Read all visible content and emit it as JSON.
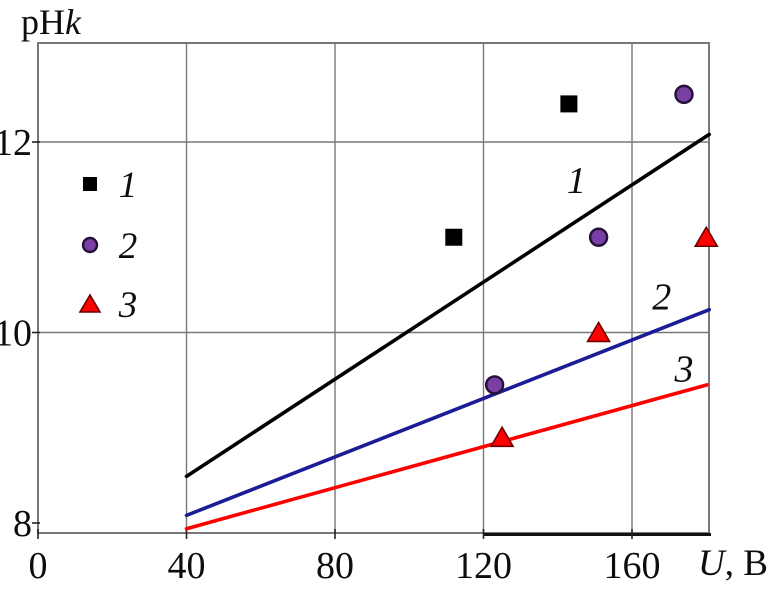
{
  "chart_data": {
    "type": "scatter",
    "title": "",
    "ylabel": {
      "normal": "pH",
      "italic": "k"
    },
    "xlabel": {
      "italic": "U",
      "normal": ", В"
    },
    "x_ticks": [
      0,
      40,
      80,
      120,
      160
    ],
    "x_grid": [
      40,
      80,
      120,
      160
    ],
    "y_ticks": [
      8,
      10,
      12
    ],
    "y_grid": [
      10,
      12
    ],
    "xlim": [
      0,
      180.8
    ],
    "ylim": [
      7.9,
      13.05
    ],
    "grid": true,
    "legend_position": "inside-top-left",
    "colors": {
      "grid": "#787878",
      "frame": "#787878",
      "tick": "#222222",
      "axis_thick_segment": "#111111",
      "series1": "#000000",
      "series2_line": "#1c1c96",
      "series2_fill": "#7a3fa5",
      "series2_outline": "#241038",
      "series3_fill": "#fe0000",
      "series3_outline": "#6b0000"
    },
    "series": [
      {
        "name": "1",
        "marker": "square",
        "marker_color": "#000000",
        "line_color": "#000000",
        "points": [
          [
            112,
            11.0
          ],
          [
            143,
            12.4
          ]
        ],
        "trend": [
          [
            40,
            8.49
          ],
          [
            180.8,
            12.08
          ]
        ],
        "label_at": [
          145,
          11.6
        ]
      },
      {
        "name": "2",
        "marker": "circle",
        "marker_color": "#7a3fa5",
        "marker_outline": "#241038",
        "line_color": "#1c1c96",
        "points": [
          [
            123,
            9.45
          ],
          [
            151,
            11.0
          ],
          [
            174,
            12.5
          ]
        ],
        "trend": [
          [
            40,
            8.08
          ],
          [
            180.8,
            10.24
          ]
        ],
        "label_at": [
          168,
          10.38
        ]
      },
      {
        "name": "3",
        "marker": "triangle",
        "marker_color": "#fe0000",
        "marker_outline": "#6b0000",
        "line_color": "#fe0000",
        "points": [
          [
            125,
            8.9
          ],
          [
            151,
            10.0
          ],
          [
            180,
            11.0
          ]
        ],
        "trend": [
          [
            40,
            7.94
          ],
          [
            180.2,
            9.45
          ]
        ],
        "label_at": [
          174,
          9.62
        ]
      }
    ],
    "legend": [
      {
        "marker": "square",
        "label": "1"
      },
      {
        "marker": "circle",
        "label": "2"
      },
      {
        "marker": "triangle",
        "label": "3"
      }
    ]
  }
}
